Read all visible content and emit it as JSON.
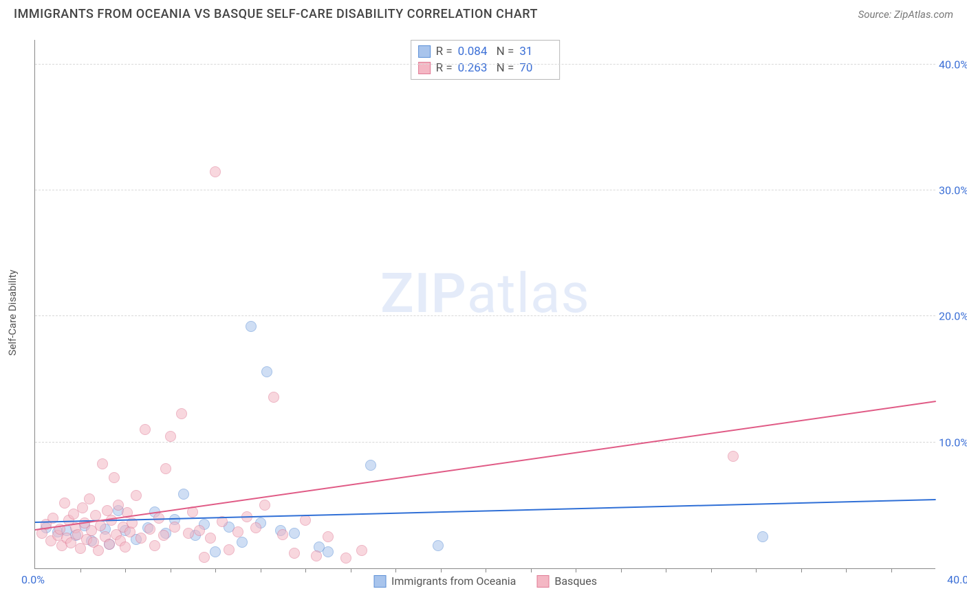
{
  "title": "IMMIGRANTS FROM OCEANIA VS BASQUE SELF-CARE DISABILITY CORRELATION CHART",
  "source_label": "Source: ",
  "source_name": "ZipAtlas.com",
  "watermark_zip": "ZIP",
  "watermark_atlas": "atlas",
  "y_axis_label": "Self-Care Disability",
  "chart": {
    "type": "scatter",
    "xlim": [
      0,
      40
    ],
    "ylim": [
      0,
      42
    ],
    "x_tick_labels": {
      "min": "0.0%",
      "max": "40.0%"
    },
    "y_ticks": [
      {
        "value": 10,
        "label": "10.0%"
      },
      {
        "value": 20,
        "label": "20.0%"
      },
      {
        "value": 30,
        "label": "30.0%"
      },
      {
        "value": 40,
        "label": "40.0%"
      }
    ],
    "x_minor_ticks": [
      2,
      4,
      6,
      8,
      10,
      12,
      14,
      16,
      18,
      20,
      22,
      24,
      26,
      28,
      30,
      32,
      34,
      36,
      38
    ],
    "grid_color": "#d8d8d8",
    "background_color": "#ffffff",
    "axis_color": "#888888",
    "point_radius": 8,
    "point_opacity": 0.55,
    "series": [
      {
        "name": "Immigrants from Oceania",
        "fill_color": "#a8c4ec",
        "stroke_color": "#5b8fd6",
        "trend": {
          "x1": 0,
          "y1": 3.6,
          "x2": 40,
          "y2": 5.4,
          "color": "#2f6fd6",
          "width": 2
        },
        "stats": {
          "R_label": "R =",
          "R": "0.084",
          "N_label": "N =",
          "N": "31"
        },
        "points": [
          [
            0.5,
            3.2
          ],
          [
            1.0,
            2.9
          ],
          [
            1.4,
            3.0
          ],
          [
            1.8,
            2.6
          ],
          [
            2.2,
            3.4
          ],
          [
            2.5,
            2.2
          ],
          [
            3.1,
            3.1
          ],
          [
            3.3,
            1.9
          ],
          [
            3.7,
            4.6
          ],
          [
            4.0,
            3.0
          ],
          [
            4.5,
            2.3
          ],
          [
            5.0,
            3.2
          ],
          [
            5.3,
            4.5
          ],
          [
            5.8,
            2.8
          ],
          [
            6.2,
            3.9
          ],
          [
            6.6,
            5.9
          ],
          [
            7.1,
            2.6
          ],
          [
            7.5,
            3.5
          ],
          [
            8.0,
            1.3
          ],
          [
            8.6,
            3.3
          ],
          [
            9.2,
            2.1
          ],
          [
            9.6,
            19.2
          ],
          [
            10.0,
            3.6
          ],
          [
            10.3,
            15.6
          ],
          [
            10.9,
            3.0
          ],
          [
            11.5,
            2.8
          ],
          [
            12.6,
            1.7
          ],
          [
            13.0,
            1.3
          ],
          [
            14.9,
            8.2
          ],
          [
            17.9,
            1.8
          ],
          [
            32.3,
            2.5
          ]
        ]
      },
      {
        "name": "Basques",
        "fill_color": "#f4b7c4",
        "stroke_color": "#e07a95",
        "trend": {
          "x1": 0,
          "y1": 3.0,
          "x2": 40,
          "y2": 13.2,
          "color": "#e05a85",
          "width": 2
        },
        "stats": {
          "R_label": "R =",
          "R": "0.263",
          "N_label": "N =",
          "N": "70"
        },
        "points": [
          [
            0.3,
            2.8
          ],
          [
            0.5,
            3.5
          ],
          [
            0.7,
            2.2
          ],
          [
            0.8,
            4.0
          ],
          [
            1.0,
            2.6
          ],
          [
            1.1,
            3.1
          ],
          [
            1.2,
            1.8
          ],
          [
            1.3,
            5.2
          ],
          [
            1.4,
            2.4
          ],
          [
            1.5,
            3.8
          ],
          [
            1.6,
            2.0
          ],
          [
            1.7,
            4.3
          ],
          [
            1.8,
            3.2
          ],
          [
            1.9,
            2.7
          ],
          [
            2.0,
            1.6
          ],
          [
            2.1,
            4.8
          ],
          [
            2.2,
            3.6
          ],
          [
            2.3,
            2.3
          ],
          [
            2.4,
            5.5
          ],
          [
            2.5,
            3.0
          ],
          [
            2.6,
            2.1
          ],
          [
            2.7,
            4.2
          ],
          [
            2.8,
            1.4
          ],
          [
            2.9,
            3.4
          ],
          [
            3.0,
            8.3
          ],
          [
            3.1,
            2.5
          ],
          [
            3.2,
            4.6
          ],
          [
            3.3,
            1.9
          ],
          [
            3.4,
            3.8
          ],
          [
            3.5,
            7.2
          ],
          [
            3.6,
            2.7
          ],
          [
            3.7,
            5.0
          ],
          [
            3.8,
            2.2
          ],
          [
            3.9,
            3.3
          ],
          [
            4.0,
            1.7
          ],
          [
            4.1,
            4.4
          ],
          [
            4.2,
            2.9
          ],
          [
            4.3,
            3.6
          ],
          [
            4.5,
            5.8
          ],
          [
            4.7,
            2.4
          ],
          [
            4.9,
            11.0
          ],
          [
            5.1,
            3.1
          ],
          [
            5.3,
            1.8
          ],
          [
            5.5,
            4.0
          ],
          [
            5.7,
            2.6
          ],
          [
            5.8,
            7.9
          ],
          [
            6.0,
            10.5
          ],
          [
            6.2,
            3.3
          ],
          [
            6.5,
            12.3
          ],
          [
            6.8,
            2.8
          ],
          [
            7.0,
            4.5
          ],
          [
            7.3,
            3.0
          ],
          [
            7.5,
            0.9
          ],
          [
            7.8,
            2.4
          ],
          [
            8.0,
            31.5
          ],
          [
            8.3,
            3.7
          ],
          [
            8.6,
            1.5
          ],
          [
            9.0,
            2.9
          ],
          [
            9.4,
            4.1
          ],
          [
            9.8,
            3.2
          ],
          [
            10.2,
            5.0
          ],
          [
            10.6,
            13.6
          ],
          [
            11.0,
            2.7
          ],
          [
            11.5,
            1.2
          ],
          [
            12.0,
            3.8
          ],
          [
            12.5,
            1.0
          ],
          [
            13.0,
            2.5
          ],
          [
            13.8,
            0.8
          ],
          [
            14.5,
            1.4
          ],
          [
            31.0,
            8.9
          ]
        ]
      }
    ]
  },
  "colors": {
    "title_color": "#444444",
    "tick_label_color": "#3b6fd6",
    "axis_label_color": "#555555"
  }
}
